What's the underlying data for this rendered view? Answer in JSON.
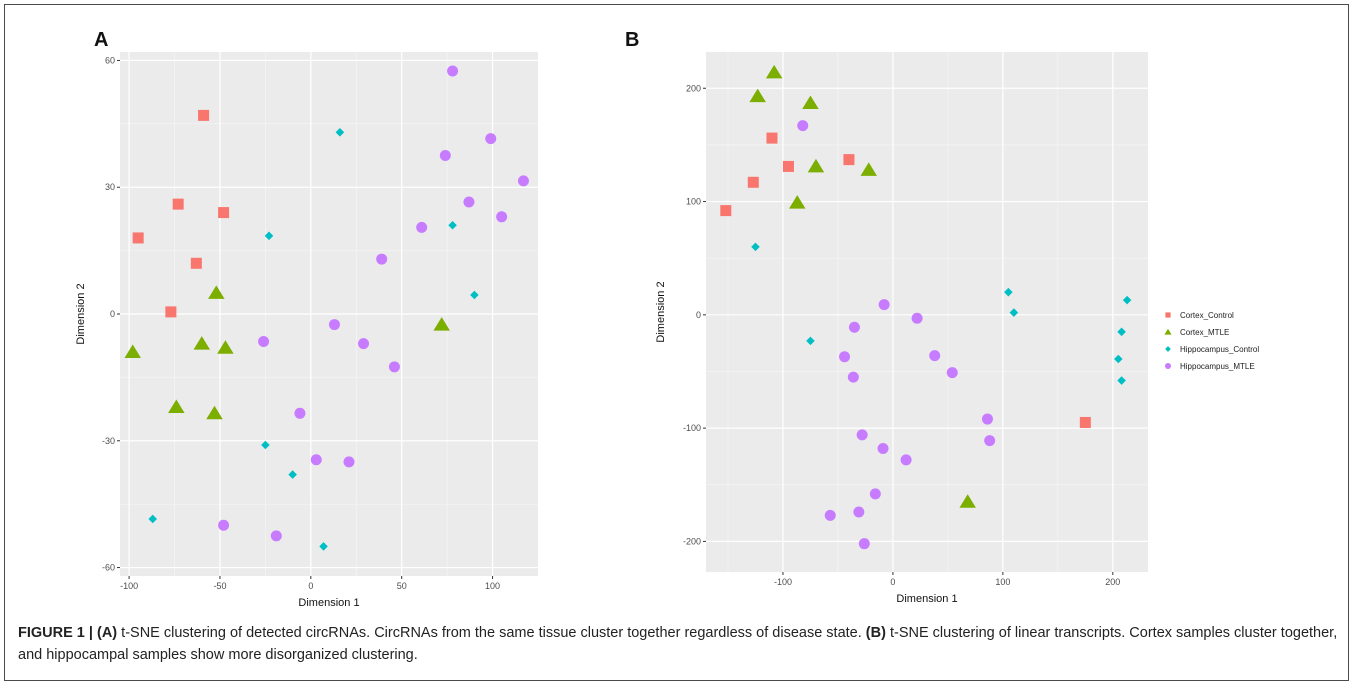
{
  "panel_letters": [
    "A",
    "B"
  ],
  "legend": [
    {
      "name": "Cortex_Control",
      "color": "#F8766D",
      "shape": "square"
    },
    {
      "name": "Cortex_MTLE",
      "color": "#7CAE00",
      "shape": "triangle"
    },
    {
      "name": "Hippocampus_Control",
      "color": "#00BFC4",
      "shape": "diamond"
    },
    {
      "name": "Hippocampus_MTLE",
      "color": "#C77CFF",
      "shape": "circle"
    }
  ],
  "caption": {
    "fig_label": "FIGURE 1 | ",
    "a_tag": "(A)",
    "a_text": " t-SNE clustering of detected circRNAs. CircRNAs from the same tissue cluster together regardless of disease state. ",
    "b_tag": "(B)",
    "b_text": " t-SNE clustering of linear transcripts. Cortex samples cluster together, and hippocampal samples show more disorganized clustering."
  },
  "chart_data": [
    {
      "type": "scatter",
      "title": "",
      "xlabel": "Dimension 1",
      "ylabel": "Dimension 2",
      "xlim": [
        -105,
        125
      ],
      "ylim": [
        -62,
        62
      ],
      "xticks": [
        -100,
        -50,
        0,
        50,
        100
      ],
      "yticks": [
        -60,
        -30,
        0,
        30,
        60
      ],
      "grid": true,
      "series": [
        {
          "name": "Cortex_Control",
          "points": [
            [
              -59,
              47
            ],
            [
              -73,
              26
            ],
            [
              -48,
              24
            ],
            [
              -95,
              18
            ],
            [
              -63,
              12
            ],
            [
              -77,
              0.5
            ]
          ]
        },
        {
          "name": "Cortex_MTLE",
          "points": [
            [
              -52,
              5
            ],
            [
              -98,
              -9
            ],
            [
              -60,
              -7
            ],
            [
              -47,
              -8
            ],
            [
              72,
              -2.5
            ],
            [
              -74,
              -22
            ],
            [
              -53,
              -23.5
            ]
          ]
        },
        {
          "name": "Hippocampus_Control",
          "points": [
            [
              16,
              43
            ],
            [
              -23,
              18.5
            ],
            [
              78,
              21
            ],
            [
              90,
              4.5
            ],
            [
              -25,
              -31
            ],
            [
              -10,
              -38
            ],
            [
              -87,
              -48.5
            ],
            [
              7,
              -55
            ]
          ]
        },
        {
          "name": "Hippocampus_MTLE",
          "points": [
            [
              78,
              57.5
            ],
            [
              74,
              37.5
            ],
            [
              99,
              41.5
            ],
            [
              117,
              31.5
            ],
            [
              87,
              26.5
            ],
            [
              105,
              23
            ],
            [
              61,
              20.5
            ],
            [
              39,
              13
            ],
            [
              -26,
              -6.5
            ],
            [
              13,
              -2.5
            ],
            [
              29,
              -7
            ],
            [
              46,
              -12.5
            ],
            [
              -6,
              -23.5
            ],
            [
              3,
              -34.5
            ],
            [
              21,
              -35
            ],
            [
              -48,
              -50
            ],
            [
              -19,
              -52.5
            ]
          ]
        }
      ]
    },
    {
      "type": "scatter",
      "title": "",
      "xlabel": "Dimension 1",
      "ylabel": "Dimension 2",
      "xlim": [
        -170,
        232
      ],
      "ylim": [
        -227,
        232
      ],
      "xticks": [
        -100,
        0,
        100,
        200
      ],
      "yticks": [
        -200,
        -100,
        0,
        100,
        200
      ],
      "grid": true,
      "series": [
        {
          "name": "Cortex_Control",
          "points": [
            [
              -110,
              156
            ],
            [
              -95,
              131
            ],
            [
              -40,
              137
            ],
            [
              -127,
              117
            ],
            [
              -152,
              92
            ],
            [
              175,
              -95
            ]
          ]
        },
        {
          "name": "Cortex_MTLE",
          "points": [
            [
              -108,
              214
            ],
            [
              -123,
              193
            ],
            [
              -75,
              187
            ],
            [
              -70,
              131
            ],
            [
              -22,
              128
            ],
            [
              -87,
              99
            ],
            [
              68,
              -165
            ]
          ]
        },
        {
          "name": "Hippocampus_Control",
          "points": [
            [
              -125,
              60
            ],
            [
              -75,
              -23
            ],
            [
              105,
              20
            ],
            [
              110,
              2
            ],
            [
              213,
              13
            ],
            [
              208,
              -15
            ],
            [
              205,
              -39
            ],
            [
              208,
              -58
            ]
          ]
        },
        {
          "name": "Hippocampus_MTLE",
          "points": [
            [
              -82,
              167
            ],
            [
              -8,
              9
            ],
            [
              22,
              -3
            ],
            [
              -35,
              -11
            ],
            [
              -44,
              -37
            ],
            [
              38,
              -36
            ],
            [
              -36,
              -55
            ],
            [
              54,
              -51
            ],
            [
              86,
              -92
            ],
            [
              88,
              -111
            ],
            [
              -28,
              -106
            ],
            [
              -9,
              -118
            ],
            [
              12,
              -128
            ],
            [
              -16,
              -158
            ],
            [
              -57,
              -177
            ],
            [
              -31,
              -174
            ],
            [
              -26,
              -202
            ]
          ]
        }
      ]
    }
  ]
}
